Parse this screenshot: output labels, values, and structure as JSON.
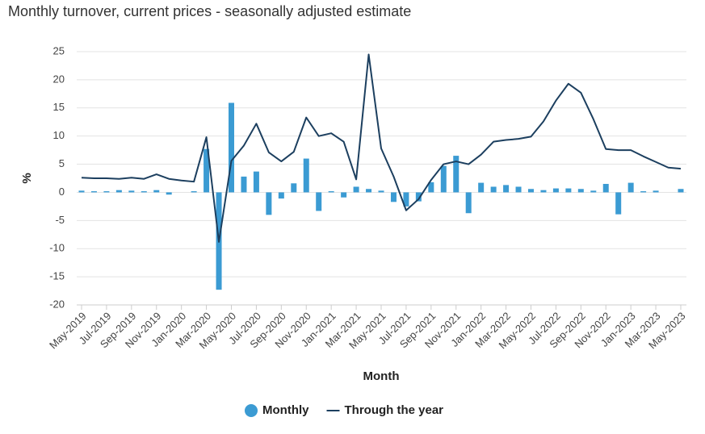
{
  "chart_data": {
    "type": "bar_line",
    "title": "Monthly turnover, current prices - seasonally adjusted estimate",
    "xlabel": "Month",
    "ylabel": "%",
    "categories": [
      "May-2019",
      null,
      "Jul-2019",
      null,
      "Sep-2019",
      null,
      "Nov-2019",
      null,
      "Jan-2020",
      null,
      "Mar-2020",
      null,
      "May-2020",
      null,
      "Jul-2020",
      null,
      "Sep-2020",
      null,
      "Nov-2020",
      null,
      "Jan-2021",
      null,
      "Mar-2021",
      null,
      "May-2021",
      null,
      "Jul-2021",
      null,
      "Sep-2021",
      null,
      "Nov-2021",
      null,
      "Jan-2022",
      null,
      "Mar-2022",
      null,
      "May-2022",
      null,
      "Jul-2022",
      null,
      "Sep-2022",
      null,
      "Nov-2022",
      null,
      "Jan-2023",
      null,
      "Mar-2023",
      null,
      "May-2023"
    ],
    "series": [
      {
        "name": "Monthly",
        "type": "bar",
        "color": "#3b9bd3",
        "values": [
          0.3,
          0.2,
          0.2,
          0.4,
          0.3,
          0.2,
          0.4,
          -0.4,
          0,
          0.2,
          7.7,
          -17.3,
          15.9,
          2.8,
          3.7,
          -4.0,
          -1.1,
          1.6,
          6.0,
          -3.3,
          0.2,
          -0.9,
          1.0,
          0.6,
          0.3,
          -1.7,
          -2.5,
          -1.6,
          1.8,
          4.7,
          6.5,
          -3.7,
          1.7,
          1.0,
          1.3,
          1.0,
          0.6,
          0.4,
          0.7,
          0.7,
          0.6,
          0.3,
          1.5,
          -3.9,
          1.7,
          0.2,
          0.3,
          0.0,
          0.6
        ]
      },
      {
        "name": "Through the year",
        "type": "line",
        "color": "#1c3f5f",
        "values": [
          2.6,
          2.5,
          2.5,
          2.4,
          2.6,
          2.4,
          3.2,
          2.4,
          2.1,
          1.9,
          9.8,
          -8.8,
          5.6,
          8.3,
          12.2,
          7.1,
          5.5,
          7.2,
          13.3,
          10.0,
          10.5,
          9.0,
          2.3,
          24.5,
          7.8,
          2.8,
          -3.2,
          -1.2,
          2.2,
          5.0,
          5.5,
          5.0,
          6.7,
          9.0,
          9.3,
          9.5,
          9.9,
          12.6,
          16.3,
          19.3,
          17.7,
          13.0,
          7.7,
          7.5,
          7.5,
          6.4,
          5.4,
          4.4,
          4.2
        ]
      }
    ],
    "ylim": [
      -20,
      25
    ],
    "yticks": [
      25,
      20,
      15,
      10,
      5,
      0,
      -5,
      -10,
      -15,
      -20
    ],
    "grid": true,
    "legend": "bottom"
  }
}
